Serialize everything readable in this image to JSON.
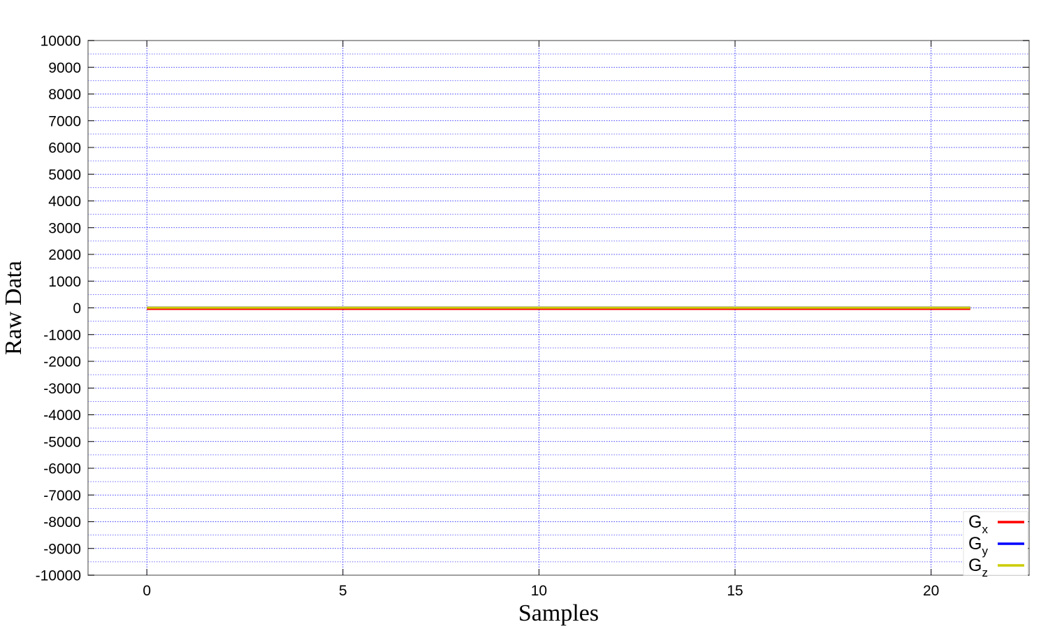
{
  "chart_data": {
    "type": "line",
    "title": "",
    "xlabel": "Samples",
    "ylabel": "Raw Data",
    "xlim": [
      -1.5,
      22.5
    ],
    "ylim": [
      -10000,
      10000
    ],
    "xticks": [
      0,
      5,
      10,
      15,
      20
    ],
    "yticks": [
      10000,
      9000,
      8000,
      7000,
      6000,
      5000,
      4000,
      3000,
      2000,
      1000,
      0,
      -1000,
      -2000,
      -3000,
      -4000,
      -5000,
      -6000,
      -7000,
      -8000,
      -9000,
      -10000
    ],
    "x_tick_labels": [
      "0",
      "5",
      "10",
      "15",
      "20"
    ],
    "y_tick_labels": [
      "10000",
      "9000",
      "8000",
      "7000",
      "6000",
      "5000",
      "4000",
      "3000",
      "2000",
      "1000",
      "0",
      "-1000",
      "-2000",
      "-3000",
      "-4000",
      "-5000",
      "-6000",
      "-7000",
      "-8000",
      "-9000",
      "-10000"
    ],
    "grid": true,
    "minor_grid_y_step": 500,
    "legend_position": "bottom-right",
    "x": [
      0,
      1,
      2,
      3,
      4,
      5,
      6,
      7,
      8,
      9,
      10,
      11,
      12,
      13,
      14,
      15,
      16,
      17,
      18,
      19,
      20,
      21
    ],
    "series": [
      {
        "name": "G",
        "subscript": "x",
        "color": "#ff0000",
        "values": [
          -40,
          -40,
          -40,
          -40,
          -40,
          -40,
          -40,
          -40,
          -40,
          -40,
          -40,
          -40,
          -40,
          -40,
          -40,
          -40,
          -40,
          -40,
          -40,
          -40,
          -40,
          -40
        ]
      },
      {
        "name": "G",
        "subscript": "y",
        "color": "#0000ff",
        "values": [
          10,
          10,
          10,
          10,
          10,
          10,
          10,
          10,
          10,
          10,
          10,
          10,
          10,
          10,
          10,
          10,
          10,
          10,
          10,
          10,
          10,
          10
        ]
      },
      {
        "name": "G",
        "subscript": "z",
        "color": "#cccc00",
        "values": [
          5,
          5,
          5,
          5,
          5,
          5,
          5,
          5,
          5,
          5,
          5,
          5,
          5,
          5,
          5,
          5,
          5,
          5,
          5,
          5,
          5,
          5
        ]
      }
    ]
  }
}
